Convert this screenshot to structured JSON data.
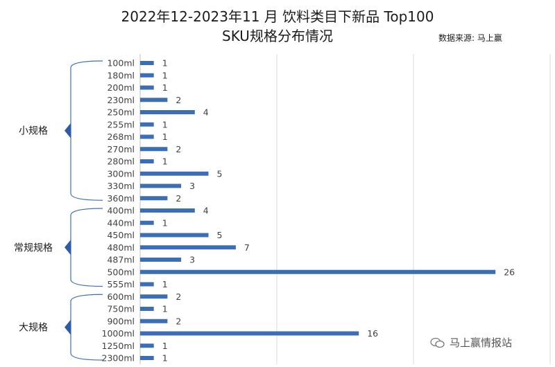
{
  "title_line1": "2022年12-2023年11 月 饮料类目下新品 Top100",
  "title_line2": "SKU规格分布情况",
  "source": "数据来源: 马上赢",
  "watermark": "马上赢情报站",
  "colors": {
    "bar": "#3c6db7",
    "text": "#404040",
    "grid": "#d9d9d9",
    "brace": "#3c6db7",
    "group_arrow": "#2e5aa8"
  },
  "chart_data": {
    "type": "bar",
    "orientation": "horizontal",
    "categories": [
      "100ml",
      "180ml",
      "200ml",
      "230ml",
      "250ml",
      "255ml",
      "268ml",
      "270ml",
      "280ml",
      "300ml",
      "330ml",
      "360ml",
      "400ml",
      "440ml",
      "450ml",
      "480ml",
      "487ml",
      "500ml",
      "555ml",
      "600ml",
      "750ml",
      "900ml",
      "1000ml",
      "1250ml",
      "2300ml"
    ],
    "values": [
      1,
      1,
      1,
      2,
      4,
      1,
      1,
      2,
      1,
      5,
      3,
      2,
      4,
      1,
      5,
      7,
      3,
      26,
      1,
      2,
      1,
      2,
      16,
      1,
      1
    ],
    "xlim": [
      0,
      30
    ],
    "grid": "vertical",
    "groups": [
      {
        "label": "小规格",
        "start": 0,
        "end": 11
      },
      {
        "label": "常规规格",
        "start": 12,
        "end": 18
      },
      {
        "label": "大规格",
        "start": 19,
        "end": 24
      }
    ]
  }
}
